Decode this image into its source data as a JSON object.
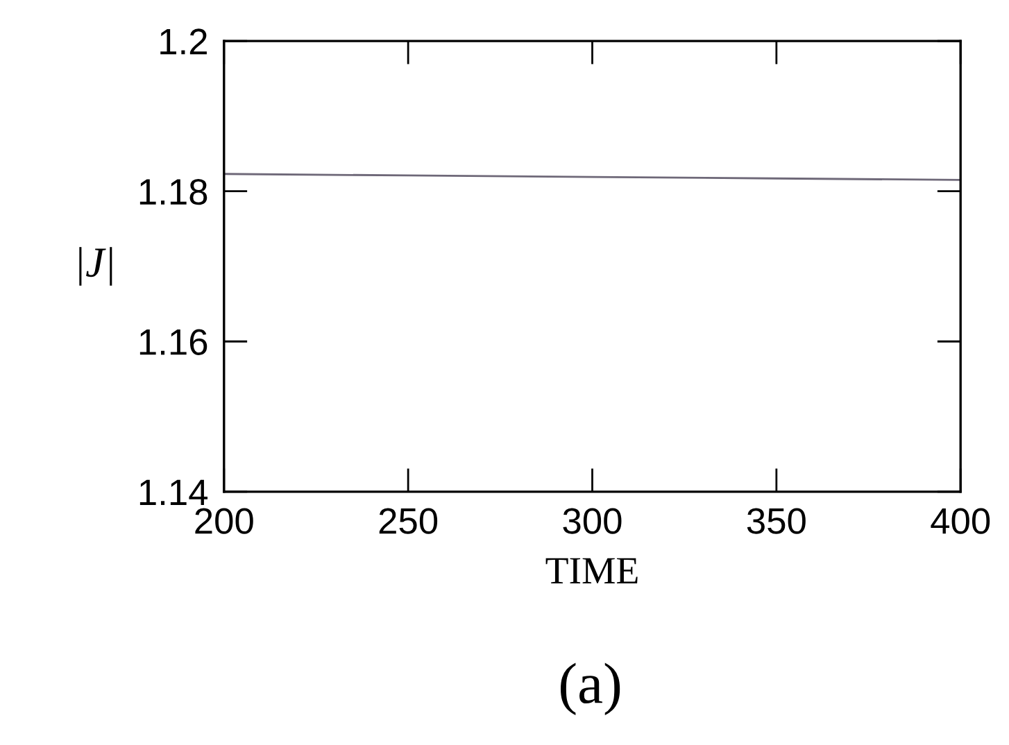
{
  "chart_data": {
    "type": "line",
    "xlabel": "TIME",
    "ylabel": "|J|",
    "annotations": [
      "(a)"
    ],
    "x": [
      200,
      250,
      300,
      350,
      400
    ],
    "series": [
      {
        "color": "#6e6878",
        "values": [
          1.1823,
          1.1821,
          1.1819,
          1.1817,
          1.1815
        ]
      }
    ],
    "xlim": [
      200,
      400
    ],
    "ylim": [
      1.14,
      1.2
    ],
    "xticks": [
      200,
      250,
      300,
      350,
      400
    ],
    "yticks": [
      1.14,
      1.16,
      1.18,
      1.2
    ],
    "grid": false,
    "legend": false,
    "line_style": "solid",
    "marker": "none"
  }
}
